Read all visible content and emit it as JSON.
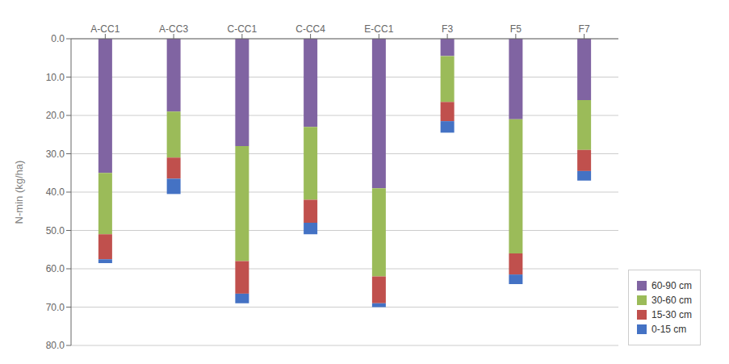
{
  "chart_data": {
    "type": "bar",
    "stacked": true,
    "categories": [
      "A-CC1",
      "A-CC3",
      "C-CC1",
      "C-CC4",
      "E-CC1",
      "F3",
      "F5",
      "F7"
    ],
    "series": [
      {
        "name": "60-90 cm",
        "color": "#8064A2",
        "values": [
          35.0,
          19.0,
          28.0,
          23.0,
          39.0,
          4.5,
          21.0,
          16.0
        ]
      },
      {
        "name": "30-60 cm",
        "color": "#9BBB59",
        "values": [
          16.0,
          12.0,
          30.0,
          19.0,
          23.0,
          12.0,
          35.0,
          13.0
        ]
      },
      {
        "name": "15-30 cm",
        "color": "#C0504D",
        "values": [
          6.5,
          5.5,
          8.5,
          6.0,
          7.0,
          5.0,
          5.5,
          5.5
        ]
      },
      {
        "name": "0-15 cm",
        "color": "#4472C4",
        "values": [
          1.0,
          4.0,
          2.5,
          3.0,
          1.0,
          3.0,
          2.5,
          2.5
        ]
      }
    ],
    "ylabel": "N-min (kg/ha)",
    "ylim": [
      80.0,
      0.0
    ],
    "yticks": [
      {
        "value": 0,
        "label": "0.0"
      },
      {
        "value": 10,
        "label": "10.0"
      },
      {
        "value": 20,
        "label": "20.0"
      },
      {
        "value": 30,
        "label": "30.0"
      },
      {
        "value": 40,
        "label": "40.0"
      },
      {
        "value": 50,
        "label": "50.0"
      },
      {
        "value": 60,
        "label": "60.0"
      },
      {
        "value": 70,
        "label": "70.0"
      },
      {
        "value": 80,
        "label": "80.0"
      }
    ],
    "grid": true,
    "legend": "lower right"
  }
}
